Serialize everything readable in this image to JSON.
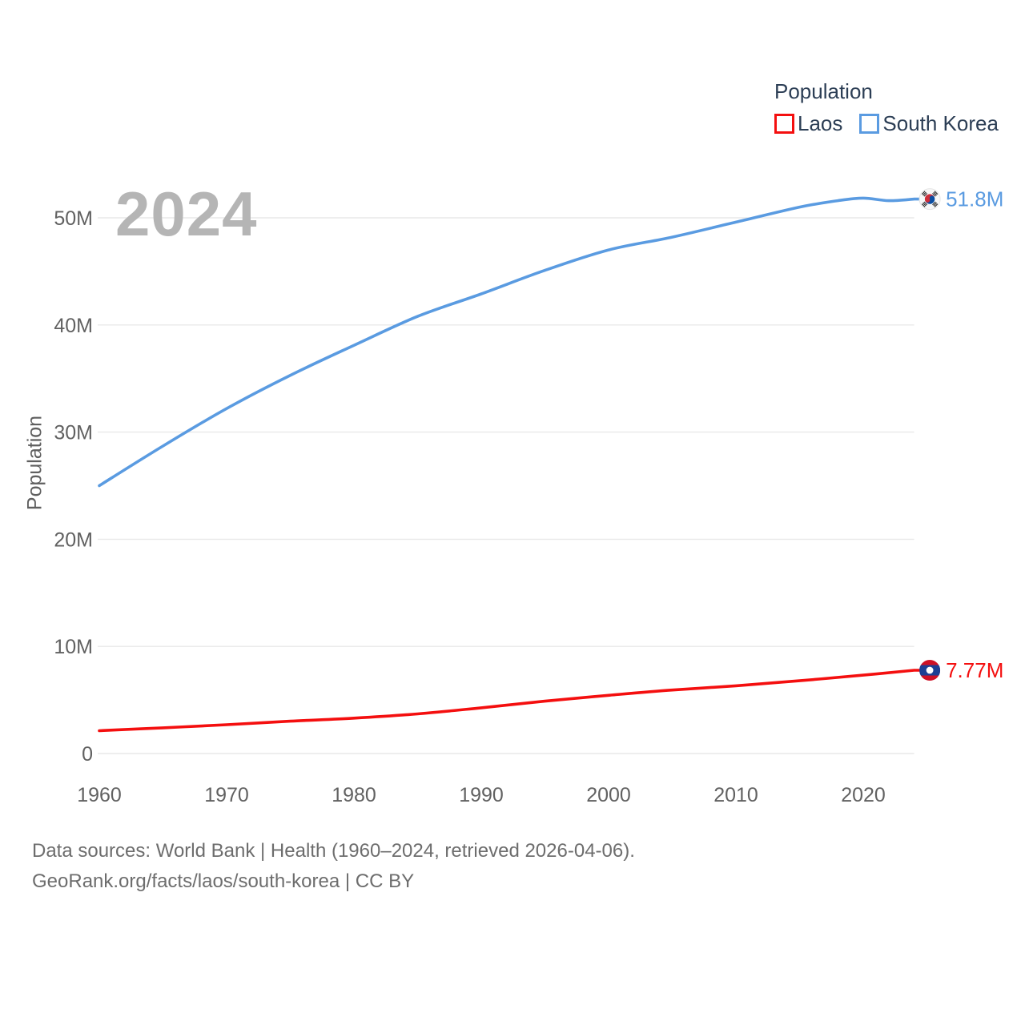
{
  "watermark": "2024",
  "legend": {
    "title": "Population",
    "items": [
      {
        "label": "Laos",
        "color": "#f40f0f"
      },
      {
        "label": "South Korea",
        "color": "#5a9be1"
      }
    ]
  },
  "y_axis": {
    "title": "Population",
    "ticks": [
      "0",
      "10M",
      "20M",
      "30M",
      "40M",
      "50M"
    ]
  },
  "x_axis": {
    "ticks": [
      "1960",
      "1970",
      "1980",
      "1990",
      "2000",
      "2010",
      "2020"
    ]
  },
  "footer": {
    "line1": "Data sources: World Bank | Health (1960–2024, retrieved 2026-04-06).",
    "line2": "GeoRank.org/facts/laos/south-korea | CC BY"
  },
  "chart_data": {
    "type": "line",
    "title": "Population",
    "xlabel": "",
    "ylabel": "Population",
    "x_range": [
      1960,
      2024
    ],
    "ylim": [
      0,
      52
    ],
    "y_units": "millions of people",
    "grid": "horizontal",
    "legend_position": "top-right",
    "series": [
      {
        "name": "Laos",
        "color": "#f40f0f",
        "end_label": "7.77M",
        "flag_icon": "laos-flag-icon",
        "points": [
          [
            1960,
            2.13
          ],
          [
            1965,
            2.4
          ],
          [
            1970,
            2.69
          ],
          [
            1975,
            3.02
          ],
          [
            1980,
            3.3
          ],
          [
            1985,
            3.7
          ],
          [
            1990,
            4.27
          ],
          [
            1995,
            4.89
          ],
          [
            2000,
            5.43
          ],
          [
            2005,
            5.93
          ],
          [
            2010,
            6.32
          ],
          [
            2015,
            6.79
          ],
          [
            2020,
            7.32
          ],
          [
            2024,
            7.77
          ]
        ]
      },
      {
        "name": "South Korea",
        "color": "#5a9be1",
        "end_label": "51.8M",
        "flag_icon": "south-korea-flag-icon",
        "points": [
          [
            1960,
            25.0
          ],
          [
            1965,
            28.7
          ],
          [
            1970,
            32.2
          ],
          [
            1975,
            35.3
          ],
          [
            1980,
            38.1
          ],
          [
            1985,
            40.8
          ],
          [
            1990,
            42.9
          ],
          [
            1995,
            45.1
          ],
          [
            2000,
            47.0
          ],
          [
            2005,
            48.2
          ],
          [
            2010,
            49.6
          ],
          [
            2015,
            51.0
          ],
          [
            2018,
            51.6
          ],
          [
            2020,
            51.84
          ],
          [
            2022,
            51.6
          ],
          [
            2024,
            51.75
          ]
        ]
      }
    ]
  }
}
